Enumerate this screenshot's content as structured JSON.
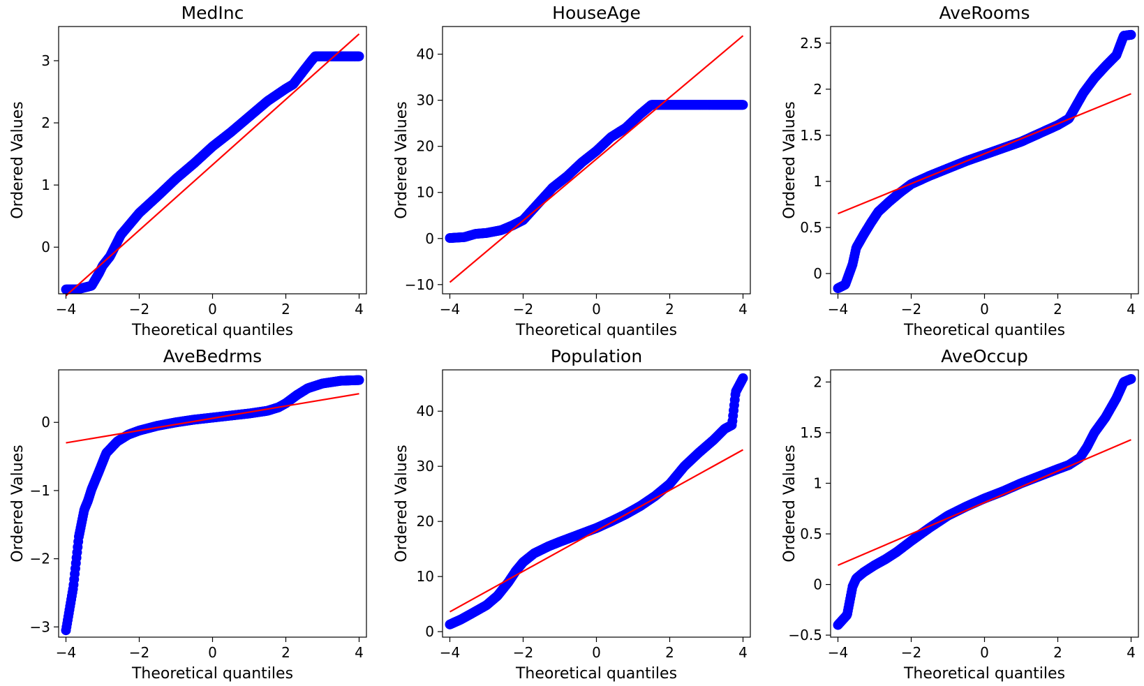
{
  "chart_data": [
    {
      "type": "scatter",
      "title": "MedInc",
      "xlabel": "Theoretical quantiles",
      "ylabel": "Ordered Values",
      "xlim": [
        -4.2,
        4.2
      ],
      "ylim": [
        -0.75,
        3.55
      ],
      "xticks": [
        -4,
        -2,
        0,
        2,
        4
      ],
      "yticks": [
        0,
        1,
        2,
        3
      ],
      "point_color": "#0000ff",
      "line_color": "#ff0000",
      "fit_line": {
        "x": [
          -4.0,
          4.0
        ],
        "y": [
          -0.78,
          3.43
        ]
      },
      "points": {
        "x": [
          -4.0,
          -3.7,
          -3.3,
          -3.1,
          -3.0,
          -2.8,
          -2.5,
          -2.0,
          -1.5,
          -1.0,
          -0.5,
          0,
          0.5,
          1.0,
          1.5,
          2.0,
          2.2,
          2.5,
          2.7,
          2.8,
          3.0,
          3.5,
          4.0
        ],
        "y": [
          -0.68,
          -0.68,
          -0.62,
          -0.42,
          -0.3,
          -0.15,
          0.2,
          0.55,
          0.82,
          1.1,
          1.35,
          1.62,
          1.85,
          2.1,
          2.35,
          2.55,
          2.62,
          2.85,
          3.0,
          3.07,
          3.07,
          3.07,
          3.07
        ]
      }
    },
    {
      "type": "scatter",
      "title": "HouseAge",
      "xlabel": "Theoretical quantiles",
      "ylabel": "Ordered Values",
      "xlim": [
        -4.2,
        4.2
      ],
      "ylim": [
        -12,
        46
      ],
      "xticks": [
        -4,
        -2,
        0,
        2,
        4
      ],
      "yticks": [
        -10,
        0,
        10,
        20,
        30,
        40
      ],
      "point_color": "#0000ff",
      "line_color": "#ff0000",
      "fit_line": {
        "x": [
          -4.0,
          4.0
        ],
        "y": [
          -9.5,
          44
        ]
      },
      "points": {
        "x": [
          -4.0,
          -3.6,
          -3.3,
          -3.0,
          -2.6,
          -2.3,
          -2.0,
          -1.6,
          -1.2,
          -0.8,
          -0.4,
          0,
          0.4,
          0.8,
          1.2,
          1.5,
          1.8,
          2.5,
          3.0,
          3.5,
          4.0
        ],
        "y": [
          0.1,
          0.3,
          1.0,
          1.2,
          1.8,
          2.8,
          4.0,
          7.5,
          11.0,
          13.5,
          16.5,
          19.0,
          22.0,
          24.0,
          27.0,
          29.0,
          29.0,
          29.0,
          29.0,
          29.0,
          29.0
        ]
      }
    },
    {
      "type": "scatter",
      "title": "AveRooms",
      "xlabel": "Theoretical quantiles",
      "ylabel": "Ordered Values",
      "xlim": [
        -4.2,
        4.2
      ],
      "ylim": [
        -0.22,
        2.68
      ],
      "xticks": [
        -4,
        -2,
        0,
        2,
        4
      ],
      "yticks": [
        0.0,
        0.5,
        1.0,
        1.5,
        2.0,
        2.5
      ],
      "point_color": "#0000ff",
      "line_color": "#ff0000",
      "fit_line": {
        "x": [
          -4.0,
          4.0
        ],
        "y": [
          0.65,
          1.95
        ]
      },
      "points": {
        "x": [
          -4.0,
          -3.8,
          -3.6,
          -3.5,
          -3.3,
          -3.1,
          -2.9,
          -2.6,
          -2.3,
          -2.0,
          -1.5,
          -1.0,
          -0.5,
          0,
          0.5,
          1.0,
          1.5,
          2.0,
          2.3,
          2.5,
          2.7,
          3.0,
          3.3,
          3.6,
          3.8,
          4.0
        ],
        "y": [
          -0.16,
          -0.12,
          0.1,
          0.28,
          0.42,
          0.55,
          0.67,
          0.78,
          0.88,
          0.97,
          1.06,
          1.14,
          1.22,
          1.29,
          1.36,
          1.43,
          1.52,
          1.61,
          1.68,
          1.82,
          1.96,
          2.12,
          2.25,
          2.37,
          2.58,
          2.59
        ]
      }
    },
    {
      "type": "scatter",
      "title": "AveBedrms",
      "xlabel": "Theoretical quantiles",
      "ylabel": "Ordered Values",
      "xlim": [
        -4.2,
        4.2
      ],
      "ylim": [
        -3.15,
        0.77
      ],
      "xticks": [
        -4,
        -2,
        0,
        2,
        4
      ],
      "yticks": [
        -3,
        -2,
        -1,
        0
      ],
      "point_color": "#0000ff",
      "line_color": "#ff0000",
      "fit_line": {
        "x": [
          -4.0,
          4.0
        ],
        "y": [
          -0.3,
          0.42
        ]
      },
      "points": {
        "x": [
          -4.0,
          -3.8,
          -3.65,
          -3.5,
          -3.4,
          -3.3,
          -3.1,
          -2.9,
          -2.6,
          -2.3,
          -2.0,
          -1.5,
          -1.0,
          -0.5,
          0,
          0.5,
          1.0,
          1.5,
          1.8,
          2.0,
          2.3,
          2.6,
          3.0,
          3.5,
          4.0
        ],
        "y": [
          -3.05,
          -2.42,
          -1.68,
          -1.28,
          -1.15,
          -0.98,
          -0.72,
          -0.45,
          -0.28,
          -0.18,
          -0.12,
          -0.05,
          0.0,
          0.04,
          0.07,
          0.1,
          0.13,
          0.17,
          0.22,
          0.28,
          0.4,
          0.5,
          0.57,
          0.61,
          0.62
        ]
      }
    },
    {
      "type": "scatter",
      "title": "Population",
      "xlabel": "Theoretical quantiles",
      "ylabel": "Ordered Values",
      "xlim": [
        -4.2,
        4.2
      ],
      "ylim": [
        -1,
        47.5
      ],
      "xticks": [
        -4,
        -2,
        0,
        2,
        4
      ],
      "yticks": [
        0,
        10,
        20,
        30,
        40
      ],
      "point_color": "#0000ff",
      "line_color": "#ff0000",
      "fit_line": {
        "x": [
          -4.0,
          4.0
        ],
        "y": [
          3.6,
          33.0
        ]
      },
      "points": {
        "x": [
          -4.0,
          -3.7,
          -3.4,
          -3.0,
          -2.7,
          -2.4,
          -2.2,
          -2.0,
          -1.7,
          -1.3,
          -1.0,
          -0.6,
          -0.2,
          0,
          0.4,
          0.8,
          1.2,
          1.6,
          2.0,
          2.4,
          2.8,
          3.2,
          3.5,
          3.7,
          3.8,
          4.0
        ],
        "y": [
          1.3,
          2.2,
          3.3,
          4.8,
          6.5,
          9.0,
          11.0,
          12.6,
          14.2,
          15.5,
          16.3,
          17.3,
          18.3,
          18.8,
          20.0,
          21.3,
          22.8,
          24.6,
          26.8,
          30.0,
          32.5,
          34.8,
          36.8,
          37.5,
          43.5,
          46.0
        ]
      }
    },
    {
      "type": "scatter",
      "title": "AveOccup",
      "xlabel": "Theoretical quantiles",
      "ylabel": "Ordered Values",
      "xlim": [
        -4.2,
        4.2
      ],
      "ylim": [
        -0.52,
        2.12
      ],
      "xticks": [
        -4,
        -2,
        0,
        2,
        4
      ],
      "yticks": [
        -0.5,
        0.0,
        0.5,
        1.0,
        1.5,
        2.0
      ],
      "point_color": "#0000ff",
      "line_color": "#ff0000",
      "fit_line": {
        "x": [
          -4.0,
          4.0
        ],
        "y": [
          0.19,
          1.43
        ]
      },
      "points": {
        "x": [
          -4.0,
          -3.75,
          -3.6,
          -3.5,
          -3.3,
          -3.0,
          -2.7,
          -2.4,
          -2.0,
          -1.5,
          -1.0,
          -0.5,
          0,
          0.5,
          1.0,
          1.5,
          2.0,
          2.3,
          2.6,
          2.8,
          3.0,
          3.3,
          3.6,
          3.8,
          4.0
        ],
        "y": [
          -0.4,
          -0.3,
          -0.02,
          0.06,
          0.12,
          0.19,
          0.25,
          0.32,
          0.43,
          0.56,
          0.68,
          0.77,
          0.85,
          0.92,
          1.0,
          1.07,
          1.14,
          1.18,
          1.25,
          1.36,
          1.5,
          1.65,
          1.84,
          2.0,
          2.03
        ]
      }
    }
  ]
}
